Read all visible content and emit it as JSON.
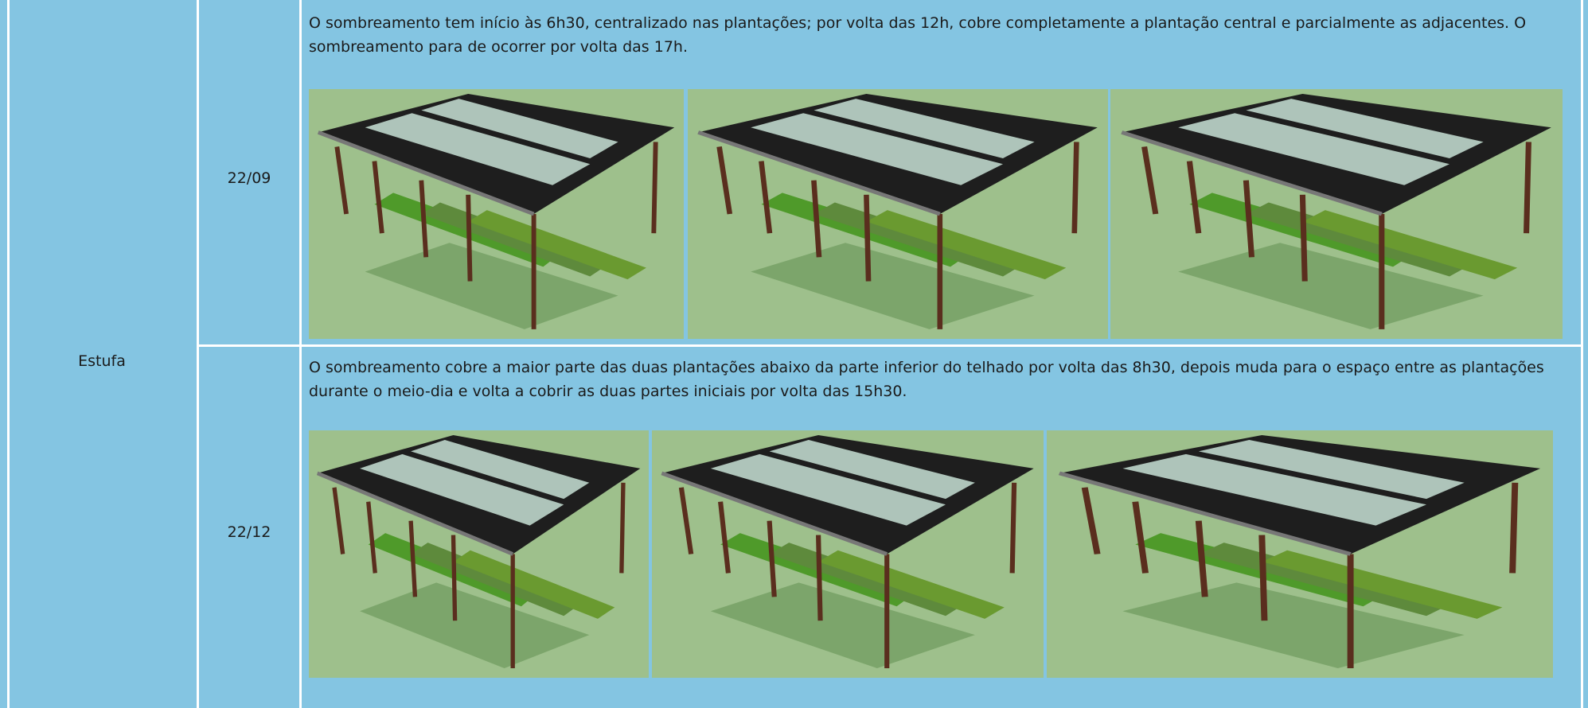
{
  "table": {
    "group": "Estufa",
    "rows": [
      {
        "date": "22/09",
        "description": "O sombreamento tem início às 6h30, centralizado nas plantações; por volta das 12h, cobre completamente a plantação central e parcialmente as adjacentes. O sombreamento para de ocorrer por volta das 17h."
      },
      {
        "date": "22/12",
        "description": "O sombreamento cobre a maior parte das duas plantações abaixo da parte inferior do telhado por volta das 8h30, depois muda para o espaço entre as plantações durante o meio-dia e volta a cobrir as duas partes iniciais por volta das 15h30."
      }
    ]
  }
}
